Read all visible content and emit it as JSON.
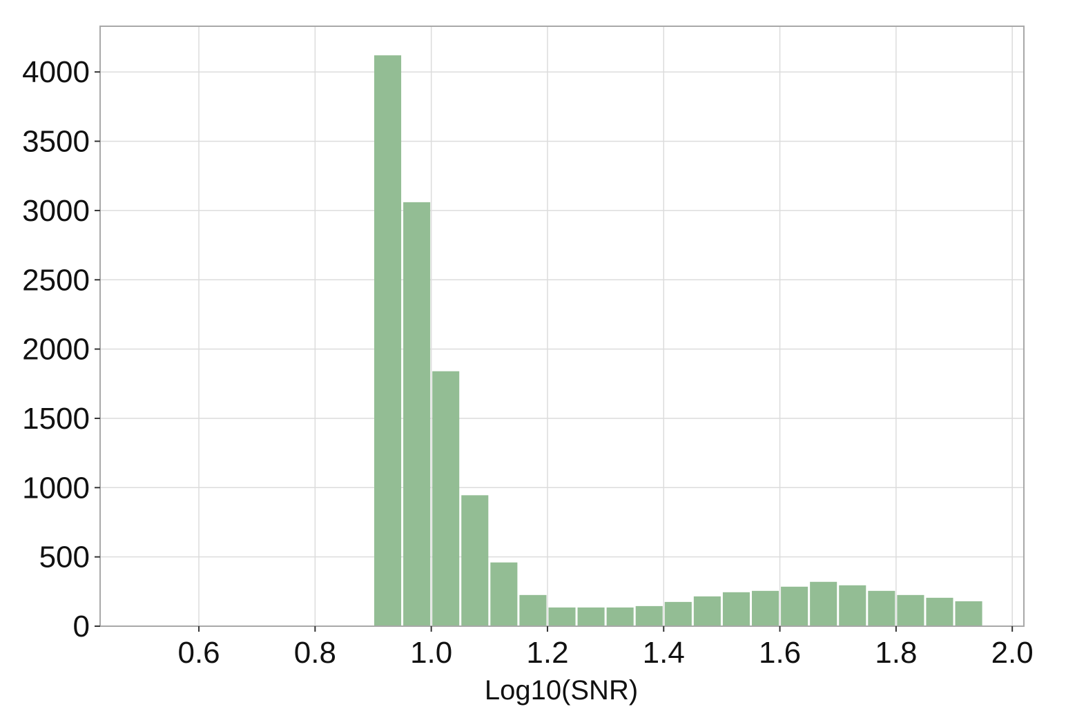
{
  "chart_data": {
    "type": "bar",
    "title": "",
    "xlabel": "Log10(SNR)",
    "ylabel": "",
    "xlim": [
      0.43,
      2.02
    ],
    "ylim": [
      0,
      4330
    ],
    "grid": true,
    "bar_color": "#93bd94",
    "bin_width": 0.05,
    "bins": [
      {
        "x0": 0.9,
        "x1": 0.95,
        "value": 4120
      },
      {
        "x0": 0.95,
        "x1": 1.0,
        "value": 3060
      },
      {
        "x0": 1.0,
        "x1": 1.05,
        "value": 1840
      },
      {
        "x0": 1.05,
        "x1": 1.1,
        "value": 945
      },
      {
        "x0": 1.1,
        "x1": 1.15,
        "value": 460
      },
      {
        "x0": 1.15,
        "x1": 1.2,
        "value": 225
      },
      {
        "x0": 1.2,
        "x1": 1.25,
        "value": 135
      },
      {
        "x0": 1.25,
        "x1": 1.3,
        "value": 135
      },
      {
        "x0": 1.3,
        "x1": 1.35,
        "value": 135
      },
      {
        "x0": 1.35,
        "x1": 1.4,
        "value": 145
      },
      {
        "x0": 1.4,
        "x1": 1.45,
        "value": 175
      },
      {
        "x0": 1.45,
        "x1": 1.5,
        "value": 215
      },
      {
        "x0": 1.5,
        "x1": 1.55,
        "value": 245
      },
      {
        "x0": 1.55,
        "x1": 1.6,
        "value": 255
      },
      {
        "x0": 1.6,
        "x1": 1.65,
        "value": 285
      },
      {
        "x0": 1.65,
        "x1": 1.7,
        "value": 320
      },
      {
        "x0": 1.7,
        "x1": 1.75,
        "value": 295
      },
      {
        "x0": 1.75,
        "x1": 1.8,
        "value": 255
      },
      {
        "x0": 1.8,
        "x1": 1.85,
        "value": 225
      },
      {
        "x0": 1.85,
        "x1": 1.9,
        "value": 205
      },
      {
        "x0": 1.9,
        "x1": 1.95,
        "value": 180
      }
    ],
    "xticks": [
      {
        "value": 0.6,
        "label": "0.6"
      },
      {
        "value": 0.8,
        "label": "0.8"
      },
      {
        "value": 1.0,
        "label": "1.0"
      },
      {
        "value": 1.2,
        "label": "1.2"
      },
      {
        "value": 1.4,
        "label": "1.4"
      },
      {
        "value": 1.6,
        "label": "1.6"
      },
      {
        "value": 1.8,
        "label": "1.8"
      },
      {
        "value": 2.0,
        "label": "2.0"
      }
    ],
    "yticks": [
      {
        "value": 0,
        "label": "0"
      },
      {
        "value": 500,
        "label": "500"
      },
      {
        "value": 1000,
        "label": "1000"
      },
      {
        "value": 1500,
        "label": "1500"
      },
      {
        "value": 2000,
        "label": "2000"
      },
      {
        "value": 2500,
        "label": "2500"
      },
      {
        "value": 3000,
        "label": "3000"
      },
      {
        "value": 3500,
        "label": "3500"
      },
      {
        "value": 4000,
        "label": "4000"
      }
    ]
  }
}
